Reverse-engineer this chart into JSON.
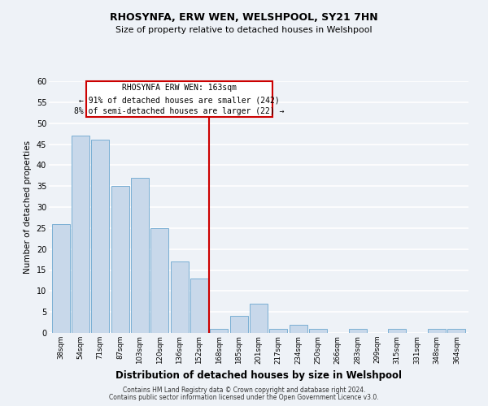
{
  "title": "RHOSYNFA, ERW WEN, WELSHPOOL, SY21 7HN",
  "subtitle": "Size of property relative to detached houses in Welshpool",
  "xlabel": "Distribution of detached houses by size in Welshpool",
  "ylabel": "Number of detached properties",
  "bin_labels": [
    "38sqm",
    "54sqm",
    "71sqm",
    "87sqm",
    "103sqm",
    "120sqm",
    "136sqm",
    "152sqm",
    "168sqm",
    "185sqm",
    "201sqm",
    "217sqm",
    "234sqm",
    "250sqm",
    "266sqm",
    "283sqm",
    "299sqm",
    "315sqm",
    "331sqm",
    "348sqm",
    "364sqm"
  ],
  "bar_values": [
    26,
    47,
    46,
    35,
    37,
    25,
    17,
    13,
    1,
    4,
    7,
    1,
    2,
    1,
    0,
    1,
    0,
    1,
    0,
    1,
    1
  ],
  "bar_color": "#c8d8ea",
  "bar_edge_color": "#7aafd4",
  "ylim": [
    0,
    60
  ],
  "yticks": [
    0,
    5,
    10,
    15,
    20,
    25,
    30,
    35,
    40,
    45,
    50,
    55,
    60
  ],
  "marker_line_color": "#cc0000",
  "annotation_title": "RHOSYNFA ERW WEN: 163sqm",
  "annotation_line1": "← 91% of detached houses are smaller (242)",
  "annotation_line2": "8% of semi-detached houses are larger (22) →",
  "annotation_box_edge": "#cc0000",
  "footer_line1": "Contains HM Land Registry data © Crown copyright and database right 2024.",
  "footer_line2": "Contains public sector information licensed under the Open Government Licence v3.0.",
  "background_color": "#eef2f7",
  "grid_color": "#ffffff"
}
